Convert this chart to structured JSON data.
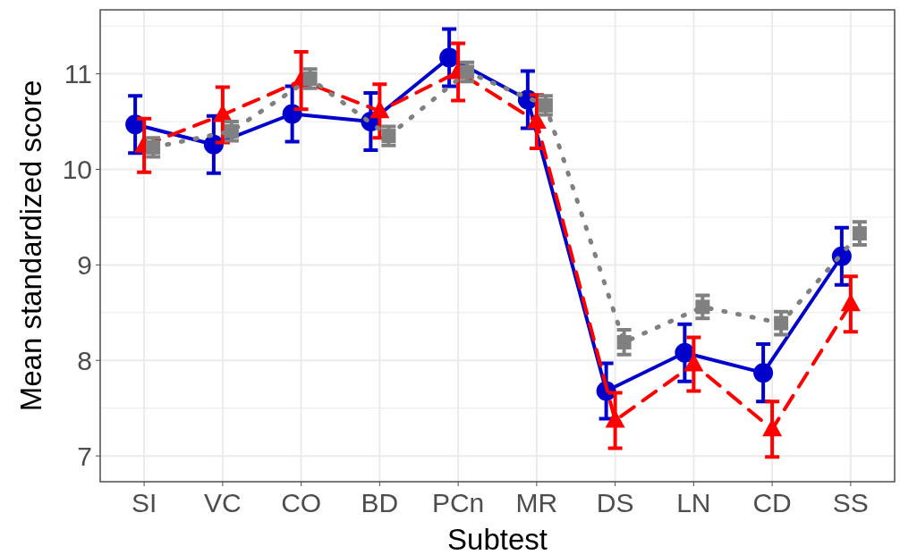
{
  "chart_data": {
    "type": "line",
    "xlabel": "Subtest",
    "ylabel": "Mean standardized score",
    "categories": [
      "SI",
      "VC",
      "CO",
      "BD",
      "PCn",
      "MR",
      "DS",
      "LN",
      "CD",
      "SS"
    ],
    "series": [
      {
        "color": "#0000cc",
        "marker": "circle",
        "line_style": "solid",
        "values": [
          10.47,
          10.26,
          10.58,
          10.5,
          11.17,
          10.73,
          7.68,
          8.08,
          7.87,
          9.09
        ],
        "errors": [
          0.3,
          0.3,
          0.29,
          0.3,
          0.3,
          0.3,
          0.29,
          0.3,
          0.3,
          0.3
        ]
      },
      {
        "color": "#ff0000",
        "marker": "triangle",
        "line_style": "dashed",
        "values": [
          10.25,
          10.57,
          10.93,
          10.61,
          11.02,
          10.5,
          7.37,
          7.96,
          7.28,
          8.59
        ],
        "errors": [
          0.28,
          0.29,
          0.3,
          0.28,
          0.3,
          0.28,
          0.29,
          0.28,
          0.29,
          0.29
        ]
      },
      {
        "color": "#808080",
        "marker": "square",
        "line_style": "dotted",
        "values": [
          10.23,
          10.4,
          10.95,
          10.35,
          11.02,
          10.67,
          8.19,
          8.56,
          8.39,
          9.33
        ],
        "errors": [
          0.1,
          0.1,
          0.1,
          0.1,
          0.1,
          0.1,
          0.13,
          0.12,
          0.12,
          0.12
        ]
      }
    ],
    "ylim": [
      6.73,
      11.67
    ],
    "yticks": [
      7,
      {
        "value": 7.5,
        "label": null
      },
      8,
      {
        "value": 8.5,
        "label": null
      },
      9,
      {
        "value": 9.5,
        "label": null
      },
      10,
      {
        "value": 10.5,
        "label": null
      },
      11,
      {
        "value": 11.5,
        "label": null
      }
    ],
    "grid": true
  }
}
